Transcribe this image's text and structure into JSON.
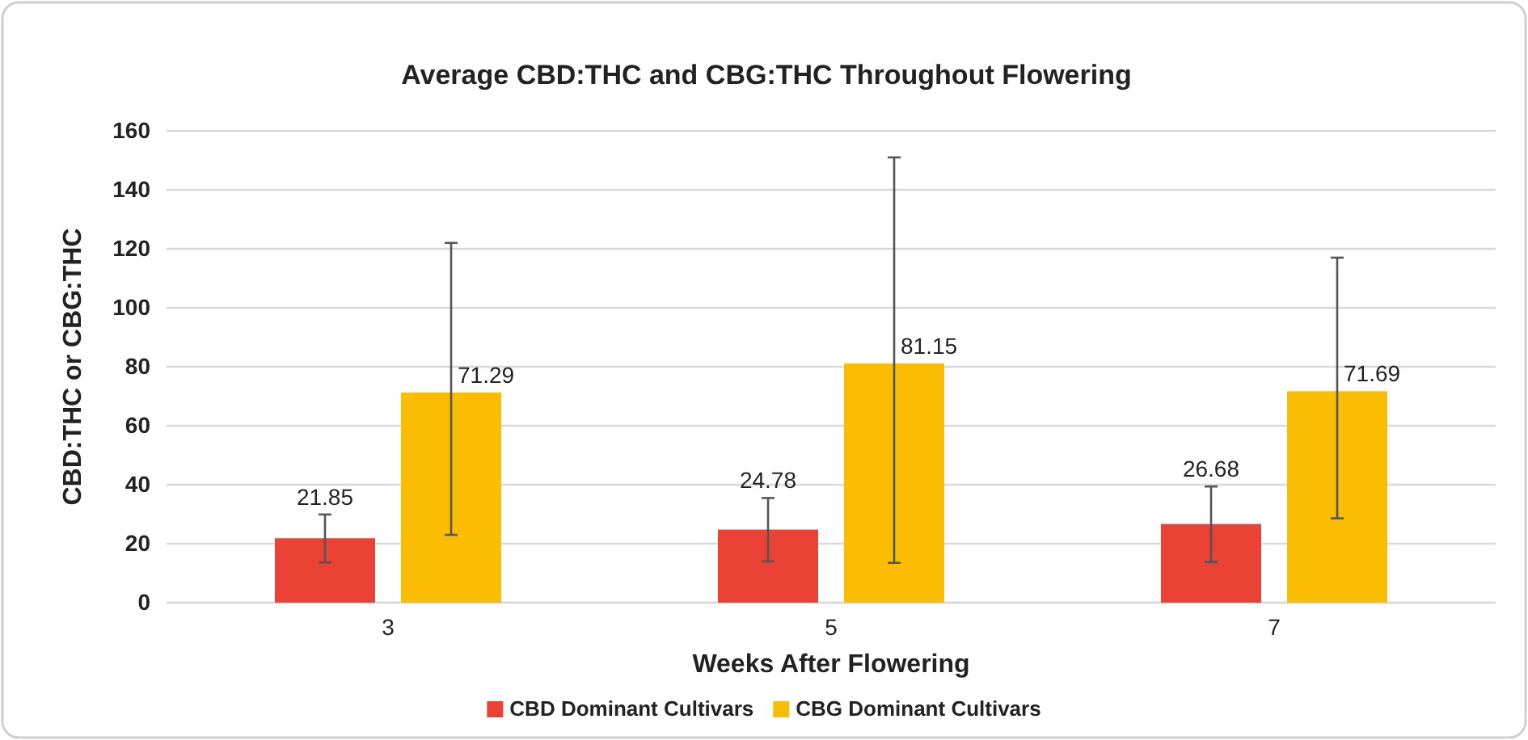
{
  "chart_data": {
    "type": "bar",
    "title": "Average CBD:THC and CBG:THC Throughout Flowering",
    "xlabel": "Weeks After Flowering",
    "ylabel": "CBD:THC or CBG:THC",
    "categories": [
      "3",
      "5",
      "7"
    ],
    "series": [
      {
        "name": "CBD Dominant Cultivars",
        "color": "#ea4335",
        "values": [
          21.85,
          24.78,
          26.68
        ],
        "errors": [
          [
            13.6,
            29.9
          ],
          [
            14,
            35.5
          ],
          [
            13.8,
            39.4
          ]
        ]
      },
      {
        "name": "CBG Dominant Cultivars",
        "color": "#fbbc04",
        "values": [
          71.29,
          81.15,
          71.69
        ],
        "errors": [
          [
            23,
            122
          ],
          [
            13.5,
            151
          ],
          [
            28.6,
            117
          ]
        ]
      }
    ],
    "data_labels": true,
    "ylim": [
      0,
      160
    ],
    "yticks": [
      0,
      20,
      40,
      60,
      80,
      100,
      120,
      140,
      160
    ],
    "grid": "y",
    "legend": "bottom"
  }
}
